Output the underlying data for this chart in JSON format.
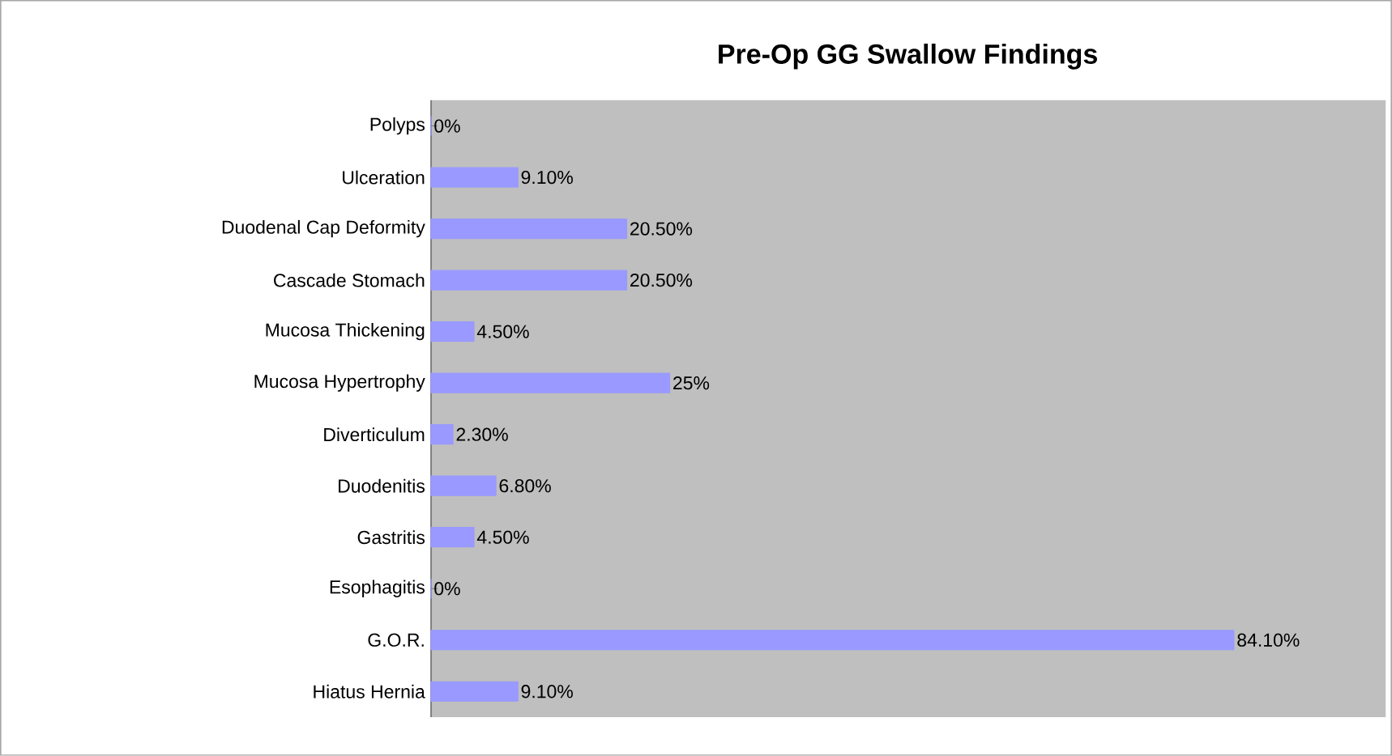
{
  "chart_data": {
    "type": "bar",
    "orientation": "horizontal",
    "title": "Pre-Op GG Swallow Findings",
    "categories": [
      "Polyps",
      "Ulceration",
      "Duodenal Cap Deformity",
      "Cascade Stomach",
      "Mucosa Thickening",
      "Mucosa Hypertrophy",
      "Diverticulum",
      "Duodenitis",
      "Gastritis",
      "Esophagitis",
      "G.O.R.",
      "Hiatus Hernia"
    ],
    "values": [
      0,
      9.1,
      20.5,
      20.5,
      4.5,
      25,
      2.3,
      6.8,
      4.5,
      0,
      84.1,
      9.1
    ],
    "value_labels": [
      "0%",
      "9.10%",
      "20.50%",
      "20.50%",
      "4.50%",
      "25%",
      "2.30%",
      "6.80%",
      "4.50%",
      "0%",
      "84.10%",
      "9.10%"
    ],
    "color": "#9999ff",
    "xlim": [
      0,
      100
    ],
    "tick_labels": "y"
  }
}
